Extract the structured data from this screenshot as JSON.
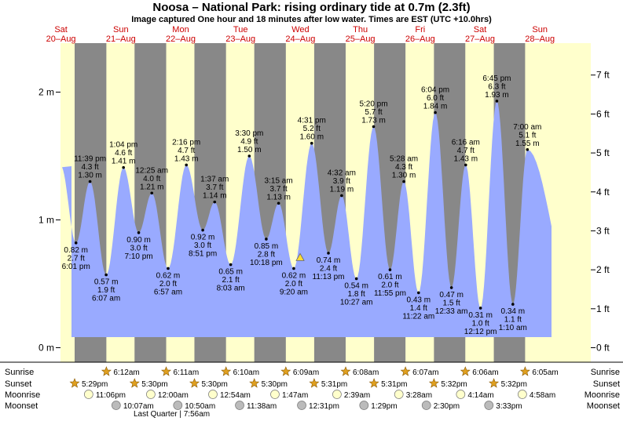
{
  "title": "Noosa – National Park: rising  ordinary tide at 0.7m (2.3ft)",
  "subtitle": "Image captured One hour and 18 minutes after low water. Times are EST (UTC +10.0hrs)",
  "colors": {
    "day_bg": "#ffffcc",
    "night_bg": "#888888",
    "tide_fill": "#99aaff",
    "day_label": "#cc0000",
    "sun_icon": "#e0a020",
    "moon_icon": "#ffffcc",
    "moonset_icon": "#bbbbbb"
  },
  "days": [
    {
      "dow": "Sat",
      "date": "20–Aug"
    },
    {
      "dow": "Sun",
      "date": "21–Aug"
    },
    {
      "dow": "Mon",
      "date": "22–Aug"
    },
    {
      "dow": "Tue",
      "date": "23–Aug"
    },
    {
      "dow": "Wed",
      "date": "24–Aug"
    },
    {
      "dow": "Thu",
      "date": "25–Aug"
    },
    {
      "dow": "Fri",
      "date": "26–Aug"
    },
    {
      "dow": "Sat",
      "date": "27–Aug"
    },
    {
      "dow": "Sun",
      "date": "28–Aug"
    }
  ],
  "row_labels": {
    "sunrise": "Sunrise",
    "sunset": "Sunset",
    "moonrise": "Moonrise",
    "moonset": "Moonset"
  },
  "sunrise": [
    {
      "day": 1,
      "time": "6:12am"
    },
    {
      "day": 2,
      "time": "6:11am"
    },
    {
      "day": 3,
      "time": "6:10am"
    },
    {
      "day": 4,
      "time": "6:09am"
    },
    {
      "day": 5,
      "time": "6:08am"
    },
    {
      "day": 6,
      "time": "6:07am"
    },
    {
      "day": 7,
      "time": "6:06am"
    },
    {
      "day": 8,
      "time": "6:05am"
    }
  ],
  "sunset": [
    {
      "day": 0,
      "time": "5:29pm"
    },
    {
      "day": 1,
      "time": "5:30pm"
    },
    {
      "day": 2,
      "time": "5:30pm"
    },
    {
      "day": 3,
      "time": "5:30pm"
    },
    {
      "day": 4,
      "time": "5:31pm"
    },
    {
      "day": 5,
      "time": "5:31pm"
    },
    {
      "day": 6,
      "time": "5:32pm"
    },
    {
      "day": 7,
      "time": "5:32pm"
    }
  ],
  "moonrise": [
    {
      "day": 0,
      "time": "11:06pm"
    },
    {
      "day": 2,
      "time": "12:00am"
    },
    {
      "day": 3,
      "time": "12:54am"
    },
    {
      "day": 4,
      "time": "1:47am"
    },
    {
      "day": 5,
      "time": "2:39am"
    },
    {
      "day": 6,
      "time": "3:28am"
    },
    {
      "day": 7,
      "time": "4:14am"
    },
    {
      "day": 8,
      "time": "4:58am"
    }
  ],
  "moonset": [
    {
      "day": 1,
      "time": "10:07am"
    },
    {
      "day": 2,
      "time": "10:50am"
    },
    {
      "day": 3,
      "time": "11:38am"
    },
    {
      "day": 4,
      "time": "12:31pm"
    },
    {
      "day": 5,
      "time": "1:29pm"
    },
    {
      "day": 6,
      "time": "2:30pm"
    },
    {
      "day": 7,
      "time": "3:33pm"
    }
  ],
  "moon_phase": "Last Quarter | 7:56am",
  "chart_data": {
    "type": "area",
    "y_left_label_unit": "m",
    "y_right_label_unit": "ft",
    "ylim_m": [
      0,
      2.35
    ],
    "y_left_ticks": [
      "0 m",
      "1 m",
      "2 m"
    ],
    "y_right_ticks": [
      "0 ft",
      "1 ft",
      "2 ft",
      "3 ft",
      "4 ft",
      "5 ft",
      "6 ft",
      "7 ft"
    ],
    "grid": false,
    "tides": [
      {
        "type": "low",
        "time": "6:01 pm",
        "m": 0.82,
        "m_label": "0.82 m",
        "ft_label": "2.7 ft",
        "day": 0,
        "hour": 18.02
      },
      {
        "type": "high",
        "time": "11:39 pm",
        "m": 1.3,
        "m_label": "1.30 m",
        "ft_label": "4.3 ft",
        "day": 0,
        "hour": 23.65
      },
      {
        "type": "low",
        "time": "6:07 am",
        "m": 0.57,
        "m_label": "0.57 m",
        "ft_label": "1.9 ft",
        "day": 1,
        "hour": 6.12
      },
      {
        "type": "high",
        "time": "1:04 pm",
        "m": 1.41,
        "m_label": "1.41 m",
        "ft_label": "4.6 ft",
        "day": 1,
        "hour": 13.07
      },
      {
        "type": "low",
        "time": "7:10 pm",
        "m": 0.9,
        "m_label": "0.90 m",
        "ft_label": "3.0 ft",
        "day": 1,
        "hour": 19.17
      },
      {
        "type": "high",
        "time": "12:25 am",
        "m": 1.21,
        "m_label": "1.21 m",
        "ft_label": "4.0 ft",
        "day": 2,
        "hour": 0.42
      },
      {
        "type": "low",
        "time": "6:57 am",
        "m": 0.62,
        "m_label": "0.62 m",
        "ft_label": "2.0 ft",
        "day": 2,
        "hour": 6.95
      },
      {
        "type": "high",
        "time": "2:16 pm",
        "m": 1.43,
        "m_label": "1.43 m",
        "ft_label": "4.7 ft",
        "day": 2,
        "hour": 14.27
      },
      {
        "type": "low",
        "time": "8:51 pm",
        "m": 0.92,
        "m_label": "0.92 m",
        "ft_label": "3.0 ft",
        "day": 2,
        "hour": 20.85
      },
      {
        "type": "high",
        "time": "1:37 am",
        "m": 1.14,
        "m_label": "1.14 m",
        "ft_label": "3.7 ft",
        "day": 3,
        "hour": 1.62
      },
      {
        "type": "low",
        "time": "8:03 am",
        "m": 0.65,
        "m_label": "0.65 m",
        "ft_label": "2.1 ft",
        "day": 3,
        "hour": 8.05
      },
      {
        "type": "high",
        "time": "3:30 pm",
        "m": 1.5,
        "m_label": "1.50 m",
        "ft_label": "4.9 ft",
        "day": 3,
        "hour": 15.5
      },
      {
        "type": "low",
        "time": "10:18 pm",
        "m": 0.85,
        "m_label": "0.85 m",
        "ft_label": "2.8 ft",
        "day": 3,
        "hour": 22.3
      },
      {
        "type": "high",
        "time": "3:15 am",
        "m": 1.13,
        "m_label": "1.13 m",
        "ft_label": "3.7 ft",
        "day": 4,
        "hour": 3.25
      },
      {
        "type": "low",
        "time": "9:20 am",
        "m": 0.62,
        "m_label": "0.62 m",
        "ft_label": "2.0 ft",
        "day": 4,
        "hour": 9.33
      },
      {
        "type": "high",
        "time": "4:31 pm",
        "m": 1.6,
        "m_label": "1.60 m",
        "ft_label": "5.2 ft",
        "day": 4,
        "hour": 16.52
      },
      {
        "type": "low",
        "time": "11:13 pm",
        "m": 0.74,
        "m_label": "0.74 m",
        "ft_label": "2.4 ft",
        "day": 4,
        "hour": 23.22
      },
      {
        "type": "high",
        "time": "4:32 am",
        "m": 1.19,
        "m_label": "1.19 m",
        "ft_label": "3.9 ft",
        "day": 5,
        "hour": 4.53
      },
      {
        "type": "low",
        "time": "10:27 am",
        "m": 0.54,
        "m_label": "0.54 m",
        "ft_label": "1.8 ft",
        "day": 5,
        "hour": 10.45
      },
      {
        "type": "high",
        "time": "5:20 pm",
        "m": 1.73,
        "m_label": "1.73 m",
        "ft_label": "5.7 ft",
        "day": 5,
        "hour": 17.33
      },
      {
        "type": "low",
        "time": "11:55 pm",
        "m": 0.61,
        "m_label": "0.61 m",
        "ft_label": "2.0 ft",
        "day": 5,
        "hour": 23.92
      },
      {
        "type": "high",
        "time": "5:28 am",
        "m": 1.3,
        "m_label": "1.30 m",
        "ft_label": "4.3 ft",
        "day": 6,
        "hour": 5.47
      },
      {
        "type": "low",
        "time": "11:22 am",
        "m": 0.43,
        "m_label": "0.43 m",
        "ft_label": "1.4 ft",
        "day": 6,
        "hour": 11.37
      },
      {
        "type": "high",
        "time": "6:04 pm",
        "m": 1.84,
        "m_label": "1.84 m",
        "ft_label": "6.0 ft",
        "day": 6,
        "hour": 18.07
      },
      {
        "type": "low",
        "time": "12:33 am",
        "m": 0.47,
        "m_label": "0.47 m",
        "ft_label": "1.5 ft",
        "day": 7,
        "hour": 0.55
      },
      {
        "type": "high",
        "time": "6:16 am",
        "m": 1.43,
        "m_label": "1.43 m",
        "ft_label": "4.7 ft",
        "day": 7,
        "hour": 6.27
      },
      {
        "type": "low",
        "time": "12:12 pm",
        "m": 0.31,
        "m_label": "0.31 m",
        "ft_label": "1.0 ft",
        "day": 7,
        "hour": 12.2
      },
      {
        "type": "high",
        "time": "6:45 pm",
        "m": 1.93,
        "m_label": "1.93 m",
        "ft_label": "6.3 ft",
        "day": 7,
        "hour": 18.75
      },
      {
        "type": "low",
        "time": "1:10 am",
        "m": 0.34,
        "m_label": "0.34 m",
        "ft_label": "1.1 ft",
        "day": 8,
        "hour": 1.17
      },
      {
        "type": "high",
        "time": "7:00 am",
        "m": 1.55,
        "m_label": "1.55 m",
        "ft_label": "5.1 ft",
        "day": 8,
        "hour": 7.0
      }
    ],
    "current": {
      "m": 0.7,
      "day": 4,
      "hour": 10.63
    }
  }
}
